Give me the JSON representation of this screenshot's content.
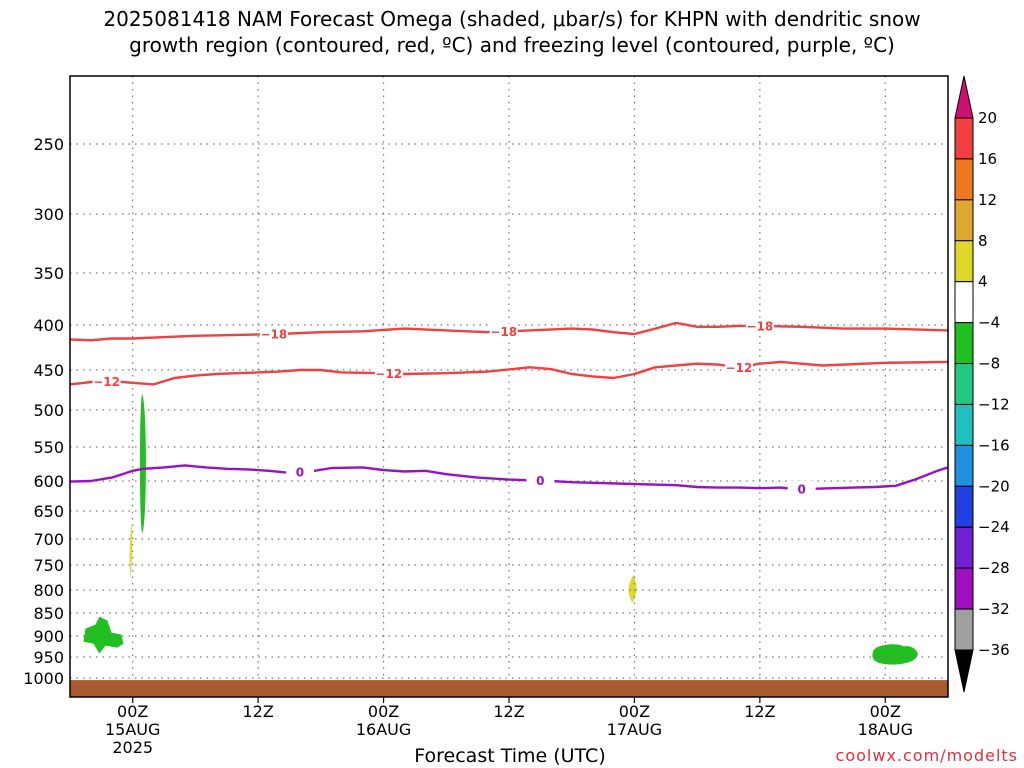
{
  "title": {
    "line1": "2025081418 NAM Forecast Omega (shaded, μbar/s) for KHPN with dendritic snow",
    "line2": "growth region (contoured, red, ºC) and freezing level (contoured, purple, ºC)"
  },
  "xlabel": "Forecast Time (UTC)",
  "credit": "coolwx.com/modelts",
  "chart_data": {
    "type": "time-height contour",
    "y_axis": {
      "ticks": [
        250,
        300,
        350,
        400,
        450,
        500,
        550,
        600,
        650,
        700,
        750,
        800,
        850,
        900,
        950,
        1000
      ],
      "range_hPa": [
        1050,
        200
      ],
      "grid": "dotted"
    },
    "x_axis": {
      "ticks": [
        {
          "t": 0,
          "label": "00Z",
          "sub1": "15AUG",
          "sub2": "2025"
        },
        {
          "t": 12,
          "label": "12Z",
          "sub1": "",
          "sub2": ""
        },
        {
          "t": 24,
          "label": "00Z",
          "sub1": "16AUG",
          "sub2": ""
        },
        {
          "t": 36,
          "label": "12Z",
          "sub1": "",
          "sub2": ""
        },
        {
          "t": 48,
          "label": "00Z",
          "sub1": "17AUG",
          "sub2": ""
        },
        {
          "t": 60,
          "label": "12Z",
          "sub1": "",
          "sub2": ""
        },
        {
          "t": 72,
          "label": "00Z",
          "sub1": "18AUG",
          "sub2": ""
        }
      ],
      "range_hours": [
        -6,
        78
      ],
      "grid": "dotted"
    },
    "colorbar": {
      "labels": [
        "20",
        "16",
        "12",
        "8",
        "4",
        "−4",
        "−8",
        "−12",
        "−16",
        "−20",
        "−24",
        "−28",
        "−32",
        "−36"
      ],
      "colors": [
        "#f04040",
        "#f07820",
        "#e0a830",
        "#e0d828",
        "#ffffff",
        "#20c020",
        "#20c880",
        "#20c0c0",
        "#2090e0",
        "#2040e0",
        "#7020d0",
        "#a010c0",
        "#a0a0a0"
      ],
      "top_arrow": "#d01070",
      "bottom_arrow": "#000000"
    },
    "contours": [
      {
        "name": "-18",
        "color": "#f04040",
        "label_hours": [
          13.5,
          35.5,
          60
        ],
        "points": [
          [
            -6,
            416
          ],
          [
            -4,
            417
          ],
          [
            -2,
            415
          ],
          [
            0,
            415
          ],
          [
            2,
            414
          ],
          [
            4,
            413
          ],
          [
            6,
            412
          ],
          [
            10,
            411
          ],
          [
            14,
            410
          ],
          [
            18,
            408
          ],
          [
            22,
            407
          ],
          [
            26,
            404
          ],
          [
            30,
            406
          ],
          [
            34,
            408
          ],
          [
            38,
            406
          ],
          [
            42,
            404
          ],
          [
            44,
            405
          ],
          [
            46,
            408
          ],
          [
            48,
            410
          ],
          [
            50,
            404
          ],
          [
            52,
            398
          ],
          [
            54,
            402
          ],
          [
            56,
            402
          ],
          [
            58,
            401
          ],
          [
            60,
            401
          ],
          [
            64,
            402
          ],
          [
            68,
            404
          ],
          [
            72,
            404
          ],
          [
            78,
            406
          ]
        ]
      },
      {
        "name": "-12",
        "color": "#f04040",
        "label_hours": [
          -2.5,
          24.5,
          58
        ],
        "points": [
          [
            -6,
            468
          ],
          [
            -4,
            465
          ],
          [
            -2,
            464
          ],
          [
            0,
            466
          ],
          [
            2,
            468
          ],
          [
            4,
            460
          ],
          [
            6,
            457
          ],
          [
            8,
            455
          ],
          [
            10,
            454
          ],
          [
            14,
            452
          ],
          [
            16,
            450
          ],
          [
            18,
            450
          ],
          [
            20,
            453
          ],
          [
            24,
            454
          ],
          [
            26,
            455
          ],
          [
            30,
            454
          ],
          [
            34,
            452
          ],
          [
            38,
            447
          ],
          [
            40,
            449
          ],
          [
            42,
            455
          ],
          [
            44,
            458
          ],
          [
            46,
            460
          ],
          [
            48,
            455
          ],
          [
            50,
            447
          ],
          [
            52,
            445
          ],
          [
            54,
            443
          ],
          [
            56,
            444
          ],
          [
            58,
            447
          ],
          [
            60,
            443
          ],
          [
            62,
            441
          ],
          [
            66,
            445
          ],
          [
            70,
            443
          ],
          [
            72,
            442
          ],
          [
            78,
            441
          ]
        ]
      },
      {
        "name": "0",
        "color": "#9a10c8",
        "label_hours": [
          16,
          39,
          64
        ],
        "points": [
          [
            -6,
            601
          ],
          [
            -4,
            600
          ],
          [
            -2,
            595
          ],
          [
            0,
            585
          ],
          [
            1,
            582
          ],
          [
            3,
            580
          ],
          [
            5,
            577
          ],
          [
            7,
            580
          ],
          [
            9,
            582
          ],
          [
            11,
            583
          ],
          [
            13,
            585
          ],
          [
            15,
            588
          ],
          [
            17,
            586
          ],
          [
            19,
            581
          ],
          [
            22,
            580
          ],
          [
            24,
            584
          ],
          [
            26,
            586
          ],
          [
            28,
            585
          ],
          [
            30,
            590
          ],
          [
            33,
            595
          ],
          [
            36,
            598
          ],
          [
            38,
            599
          ],
          [
            40,
            600
          ],
          [
            42,
            602
          ],
          [
            44,
            603
          ],
          [
            48,
            605
          ],
          [
            52,
            607
          ],
          [
            54,
            610
          ],
          [
            56,
            611
          ],
          [
            58,
            611
          ],
          [
            60,
            612
          ],
          [
            62,
            611
          ],
          [
            63,
            613
          ],
          [
            65,
            613
          ],
          [
            67,
            612
          ],
          [
            69,
            611
          ],
          [
            71,
            610
          ],
          [
            73,
            608
          ],
          [
            75,
            597
          ],
          [
            77,
            585
          ],
          [
            78,
            580
          ]
        ]
      }
    ],
    "shaded_regions": [
      {
        "value_range": [
          -8,
          -4
        ],
        "color": "#20c020",
        "hour": 1.0,
        "p_top": 480,
        "p_bottom": 690
      },
      {
        "value_range": [
          4,
          8
        ],
        "color": "#e0d828",
        "hour": -0.2,
        "p_top": 670,
        "p_bottom": 778
      },
      {
        "value_range": [
          4,
          8
        ],
        "color": "#e0d828",
        "hour": 47.8,
        "p_top": 770,
        "p_bottom": 828
      },
      {
        "value_range": [
          -8,
          -4
        ],
        "color": "#20c020",
        "hour": -2.8,
        "p_top": 858,
        "p_bottom": 942
      },
      {
        "value_range": [
          -8,
          -4
        ],
        "color": "#20c020",
        "hour": 73,
        "p_top": 920,
        "p_bottom": 965
      }
    ],
    "terrain": {
      "color": "#a85a30",
      "p_top": 1005
    }
  }
}
